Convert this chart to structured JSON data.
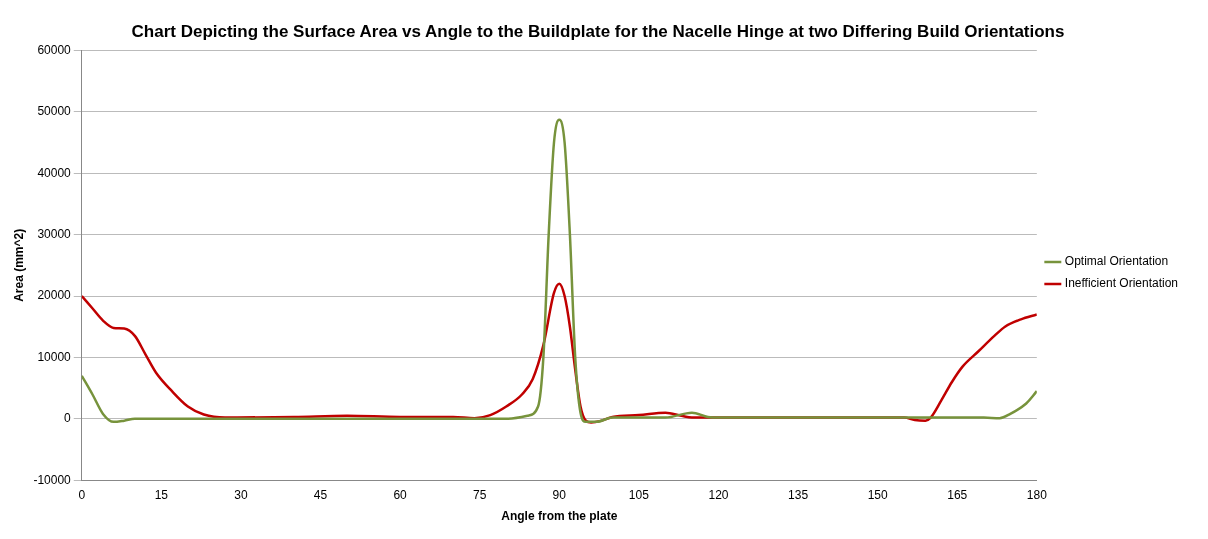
{
  "chart_data": {
    "type": "line",
    "title": "Chart Depicting the Surface Area vs Angle to the Buildplate for the Nacelle Hinge at two Differing Build Orientations",
    "xlabel": "Angle from the plate",
    "ylabel": "Area (mm^2)",
    "xlim": [
      0,
      180
    ],
    "xticks": [
      0,
      15,
      30,
      45,
      60,
      75,
      90,
      105,
      120,
      135,
      150,
      165,
      180
    ],
    "ylim": [
      -10000,
      60000
    ],
    "yticks": [
      -10000,
      0,
      10000,
      20000,
      30000,
      40000,
      50000,
      60000
    ],
    "grid": "y",
    "legend": "right",
    "marker": "none",
    "line_style": "solid",
    "series": [
      {
        "name": "Optimal Orientation",
        "color": "#77933c",
        "x": [
          0,
          2,
          4,
          6,
          8,
          10,
          30,
          60,
          78,
          80,
          84,
          86,
          87,
          88,
          89,
          90,
          91,
          92,
          93,
          94,
          95,
          97,
          100,
          110,
          115,
          118,
          120,
          150,
          170,
          173,
          175,
          178,
          180
        ],
        "values": [
          7000,
          4000,
          800,
          -500,
          -300,
          0,
          0,
          0,
          0,
          0,
          500,
          2000,
          10000,
          30000,
          45000,
          48700,
          45000,
          30000,
          10000,
          1000,
          -500,
          -500,
          200,
          200,
          1000,
          300,
          200,
          200,
          200,
          100,
          800,
          2500,
          4500
        ]
      },
      {
        "name": "Inefficient Orientation",
        "color": "#c00000",
        "x": [
          0,
          2,
          4,
          6,
          8,
          10,
          12,
          14,
          17,
          20,
          23,
          27,
          40,
          50,
          60,
          70,
          74,
          77,
          80,
          83,
          85,
          87,
          89,
          90,
          91,
          92,
          93,
          94,
          95,
          96,
          98,
          100,
          105,
          110,
          113,
          115,
          120,
          155,
          157,
          159,
          160,
          162,
          164,
          166,
          169,
          172,
          174,
          177,
          180
        ],
        "values": [
          20000,
          18000,
          16000,
          14800,
          14700,
          13500,
          10500,
          7500,
          4500,
          2000,
          700,
          200,
          300,
          500,
          300,
          300,
          100,
          600,
          2000,
          4000,
          6500,
          12000,
          20500,
          22000,
          20000,
          15000,
          8000,
          2000,
          -300,
          -600,
          -300,
          300,
          600,
          1000,
          500,
          200,
          200,
          200,
          -200,
          -300,
          200,
          3000,
          6000,
          8500,
          11000,
          13500,
          15000,
          16200,
          17000
        ]
      }
    ]
  }
}
